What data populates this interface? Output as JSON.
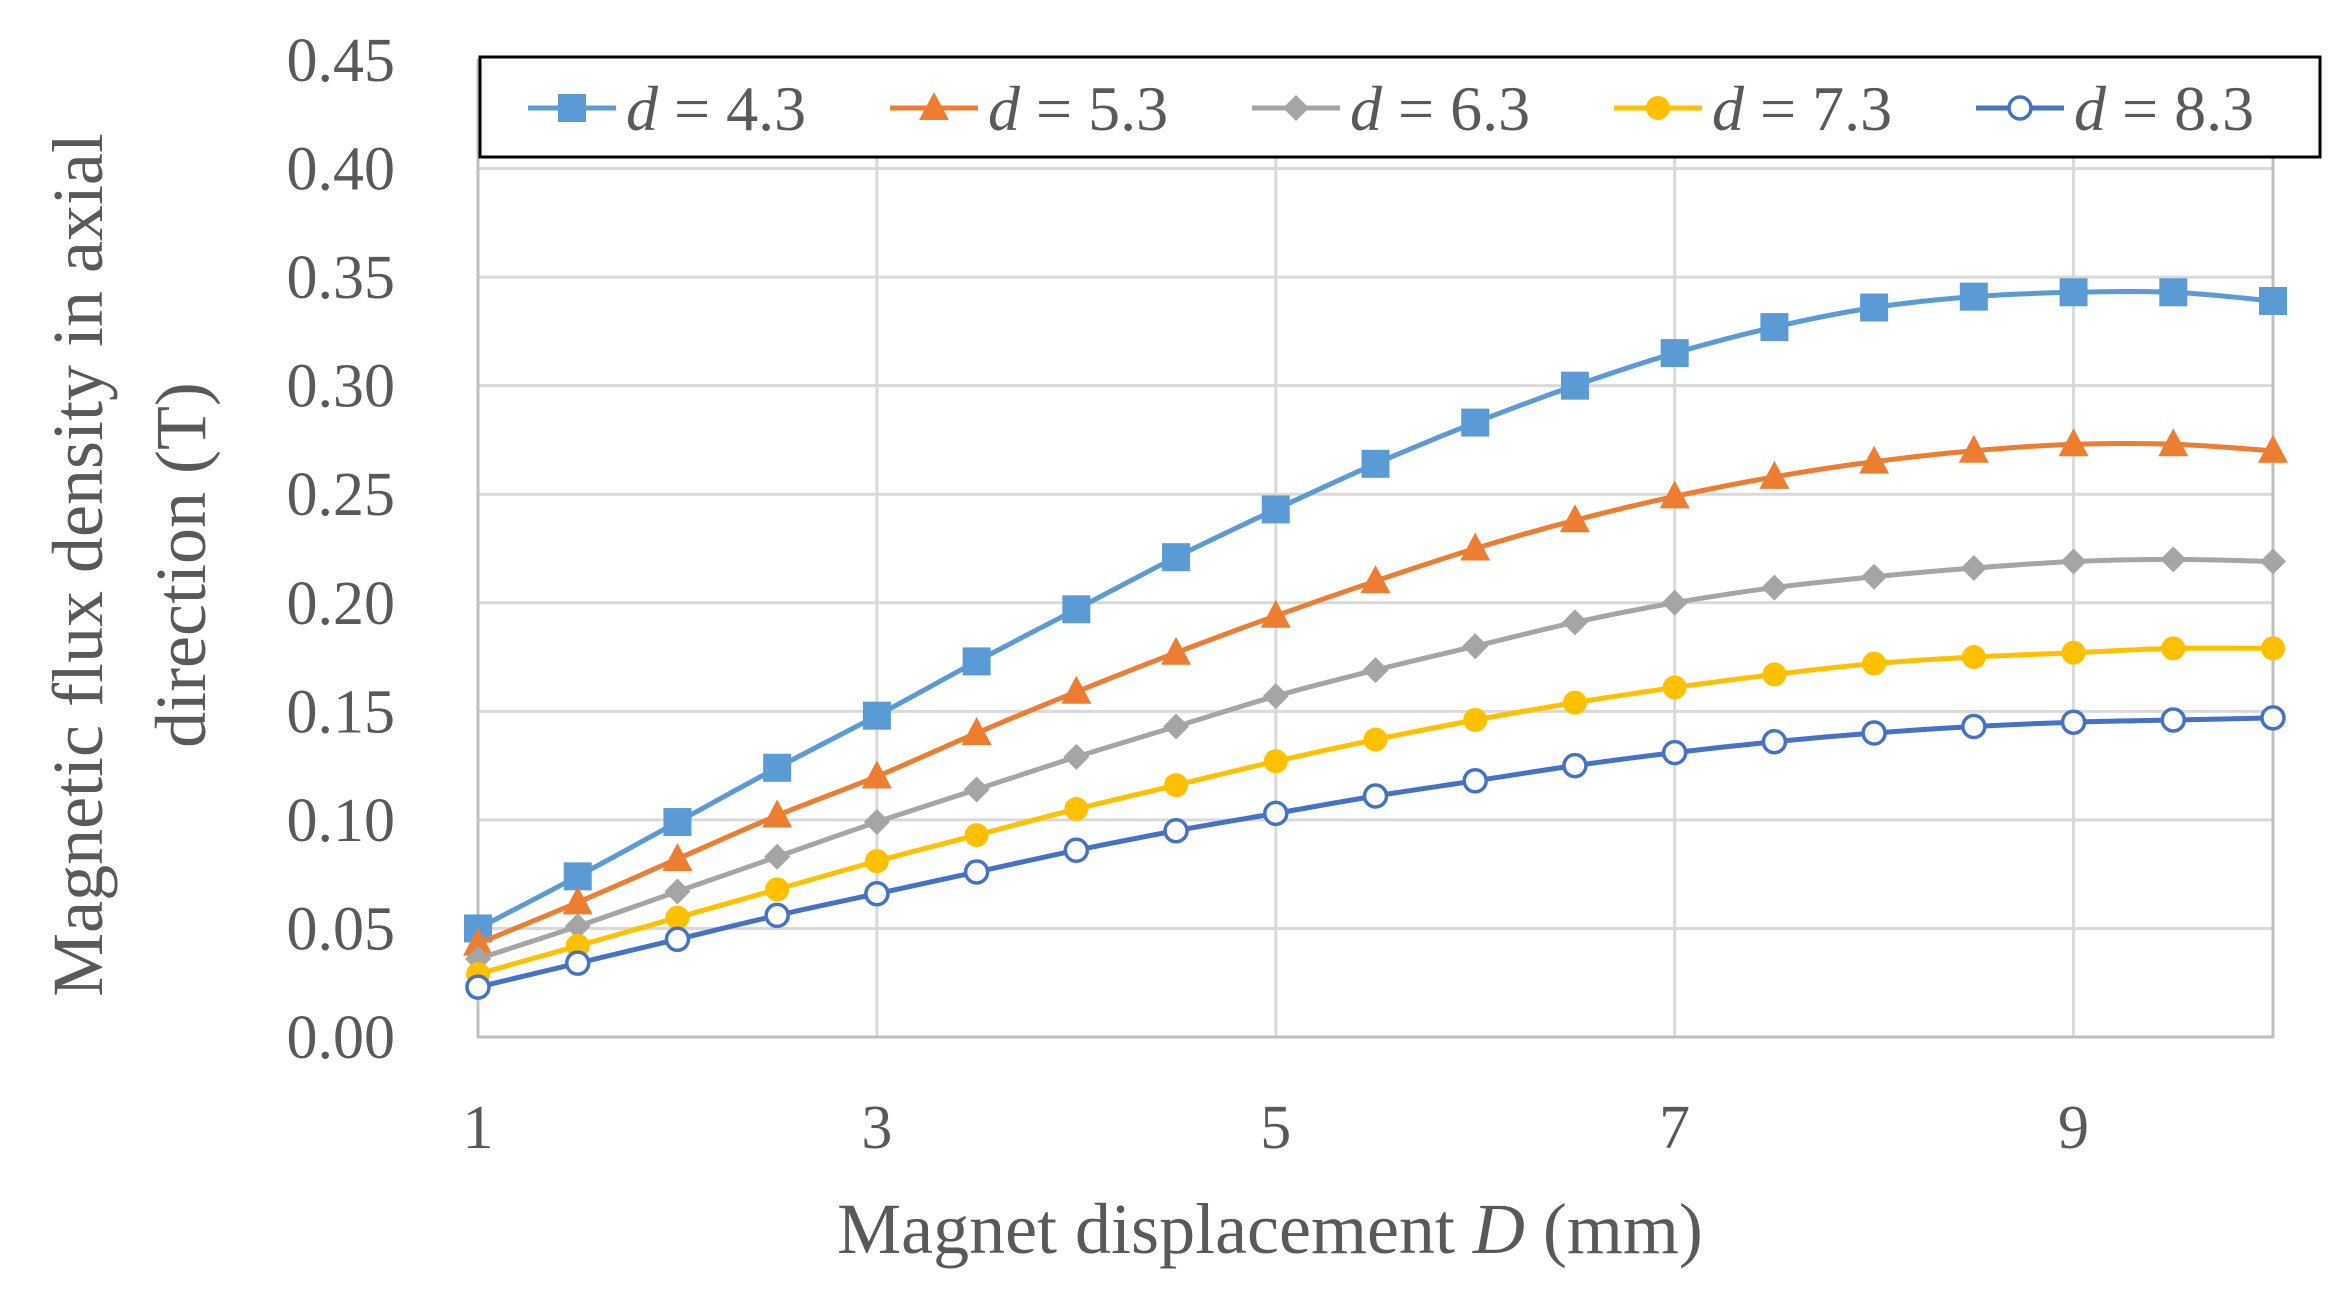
{
  "chart_data": {
    "type": "line",
    "title": "",
    "xlabel": {
      "prefix": "Magnet displacement ",
      "var": "D",
      "suffix": " (mm)"
    },
    "ylabel": {
      "line1": "Magnetic flux density in axial",
      "line2": "direction (T)"
    },
    "xlim": [
      1,
      10
    ],
    "ylim": [
      0,
      0.45
    ],
    "xticks": [
      "1",
      "3",
      "5",
      "7",
      "9"
    ],
    "xtick_values": [
      1,
      3,
      5,
      7,
      9
    ],
    "yticks": [
      "0.00",
      "0.05",
      "0.10",
      "0.15",
      "0.20",
      "0.25",
      "0.30",
      "0.35",
      "0.40",
      "0.45"
    ],
    "ytick_values": [
      0,
      0.05,
      0.1,
      0.15,
      0.2,
      0.25,
      0.3,
      0.35,
      0.4,
      0.45
    ],
    "legend_position": "top",
    "x": [
      1,
      1.5,
      2,
      2.5,
      3,
      3.5,
      4,
      4.5,
      5,
      5.5,
      6,
      6.5,
      7,
      7.5,
      8,
      8.5,
      9,
      9.5,
      10
    ],
    "series": [
      {
        "name": "d = 4.3",
        "var": "d",
        "label_value": " = 4.3",
        "color": "#5b9bd5",
        "marker": "square",
        "values": [
          0.05,
          0.074,
          0.099,
          0.124,
          0.148,
          0.173,
          0.197,
          0.221,
          0.243,
          0.264,
          0.283,
          0.3,
          0.315,
          0.327,
          0.336,
          0.341,
          0.343,
          0.343,
          0.339
        ]
      },
      {
        "name": "d = 5.3",
        "var": "d",
        "label_value": " = 5.3",
        "color": "#ed7d31",
        "marker": "triangle",
        "values": [
          0.043,
          0.062,
          0.082,
          0.102,
          0.12,
          0.14,
          0.159,
          0.177,
          0.194,
          0.21,
          0.225,
          0.238,
          0.249,
          0.258,
          0.265,
          0.27,
          0.273,
          0.273,
          0.27
        ]
      },
      {
        "name": "d = 6.3",
        "var": "d",
        "label_value": " = 6.3",
        "color": "#a5a5a5",
        "marker": "diamond",
        "values": [
          0.036,
          0.051,
          0.067,
          0.083,
          0.099,
          0.114,
          0.129,
          0.143,
          0.157,
          0.169,
          0.18,
          0.191,
          0.2,
          0.207,
          0.212,
          0.216,
          0.219,
          0.22,
          0.219
        ]
      },
      {
        "name": "d = 7.3",
        "var": "d",
        "label_value": " = 7.3",
        "color": "#ffc000",
        "marker": "circle",
        "values": [
          0.029,
          0.042,
          0.055,
          0.068,
          0.081,
          0.093,
          0.105,
          0.116,
          0.127,
          0.137,
          0.146,
          0.154,
          0.161,
          0.167,
          0.172,
          0.175,
          0.177,
          0.179,
          0.179
        ]
      },
      {
        "name": "d = 8.3",
        "var": "d",
        "label_value": " = 8.3",
        "color": "#4472c4",
        "marker": "open-circle",
        "values": [
          0.023,
          0.034,
          0.045,
          0.056,
          0.066,
          0.076,
          0.086,
          0.095,
          0.103,
          0.111,
          0.118,
          0.125,
          0.131,
          0.136,
          0.14,
          0.143,
          0.145,
          0.146,
          0.147
        ]
      }
    ]
  }
}
